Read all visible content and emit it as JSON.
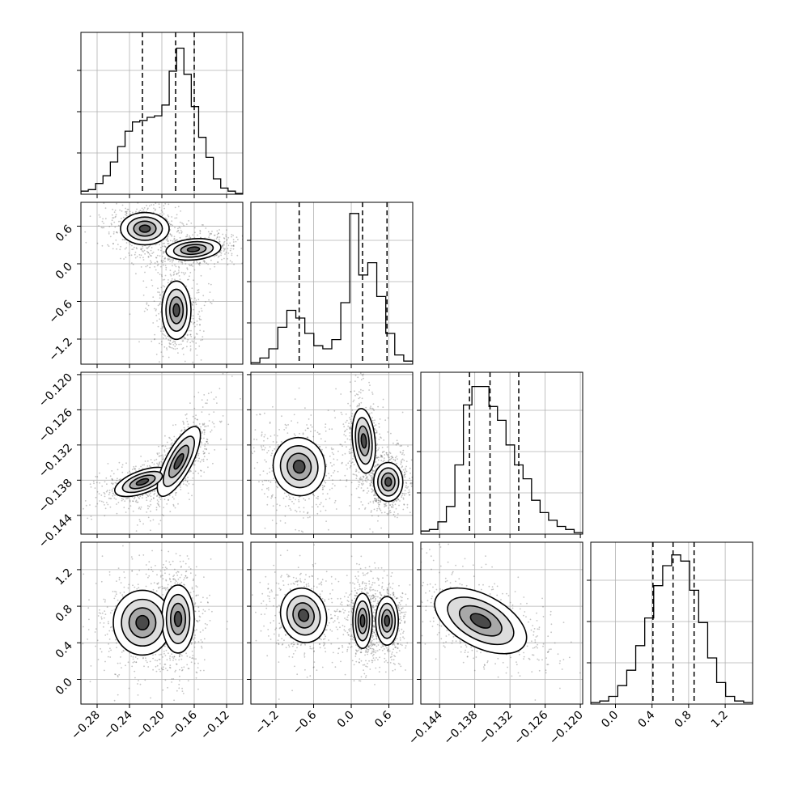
{
  "chart_data": {
    "type": "corner",
    "n_params": 4,
    "grid": true,
    "colors": {
      "line": "#000000",
      "grid": "#b0b0b0",
      "background": "#ffffff",
      "points": "#555555"
    },
    "params": [
      {
        "range": [
          -0.3,
          -0.1
        ],
        "ticks": [
          "−0.28",
          "−0.24",
          "−0.20",
          "−0.16",
          "−0.12"
        ],
        "tick_values": [
          -0.28,
          -0.24,
          -0.2,
          -0.16,
          -0.12
        ],
        "quantiles": [
          -0.224,
          -0.183,
          -0.16
        ]
      },
      {
        "range": [
          -1.6,
          0.98
        ],
        "ticks": [
          "−1.2",
          "−0.6",
          "0.0",
          "0.6"
        ],
        "tick_values": [
          -1.2,
          -0.6,
          0.0,
          0.6
        ],
        "quantiles": [
          -0.83,
          0.18,
          0.57
        ]
      },
      {
        "range": [
          -0.1472,
          -0.1196
        ],
        "ticks": [
          "−0.144",
          "−0.138",
          "−0.132",
          "−0.126",
          "−0.120"
        ],
        "tick_values": [
          -0.144,
          -0.138,
          -0.132,
          -0.126,
          -0.12
        ],
        "quantiles": [
          -0.1389,
          -0.1354,
          -0.1305
        ]
      },
      {
        "range": [
          -0.27,
          1.5
        ],
        "ticks": [
          "0.0",
          "0.4",
          "0.8",
          "1.2"
        ],
        "tick_values": [
          0.0,
          0.4,
          0.8,
          1.2
        ],
        "quantiles": [
          0.41,
          0.63,
          0.86
        ]
      }
    ],
    "histograms": [
      {
        "param": 0,
        "counts": [
          0.02,
          0.03,
          0.07,
          0.12,
          0.21,
          0.31,
          0.41,
          0.47,
          0.48,
          0.5,
          0.51,
          0.58,
          0.8,
          0.95,
          0.78,
          0.57,
          0.37,
          0.24,
          0.1,
          0.04,
          0.02,
          0.005
        ]
      },
      {
        "param": 1,
        "counts": [
          0.01,
          0.04,
          0.1,
          0.24,
          0.35,
          0.3,
          0.2,
          0.12,
          0.1,
          0.16,
          0.4,
          0.98,
          0.58,
          0.66,
          0.44,
          0.2,
          0.06,
          0.02
        ]
      },
      {
        "param": 2,
        "counts": [
          0.02,
          0.03,
          0.08,
          0.18,
          0.45,
          0.84,
          0.96,
          0.96,
          0.83,
          0.74,
          0.58,
          0.45,
          0.36,
          0.22,
          0.14,
          0.09,
          0.05,
          0.03,
          0.01
        ]
      },
      {
        "param": 3,
        "counts": [
          0.01,
          0.02,
          0.05,
          0.12,
          0.22,
          0.38,
          0.56,
          0.77,
          0.9,
          0.97,
          0.93,
          0.74,
          0.53,
          0.3,
          0.14,
          0.05,
          0.02,
          0.01
        ]
      }
    ],
    "pair_modes": [
      {
        "x_param": 0,
        "y_param": 1,
        "modes": [
          {
            "x": -0.221,
            "y": 0.56
          },
          {
            "x": -0.161,
            "y": 0.23
          },
          {
            "x": -0.182,
            "y": -0.74
          }
        ]
      },
      {
        "x_param": 0,
        "y_param": 2,
        "modes": [
          {
            "x": -0.224,
            "y": -0.1383
          },
          {
            "x": -0.179,
            "y": -0.1348
          }
        ]
      },
      {
        "x_param": 1,
        "y_param": 2,
        "modes": [
          {
            "x": -0.83,
            "y": -0.1357
          },
          {
            "x": 0.2,
            "y": -0.1313
          },
          {
            "x": 0.59,
            "y": -0.1383
          }
        ]
      },
      {
        "x_param": 0,
        "y_param": 3,
        "modes": [
          {
            "x": -0.224,
            "y": 0.62
          },
          {
            "x": -0.18,
            "y": 0.66
          }
        ]
      },
      {
        "x_param": 1,
        "y_param": 3,
        "modes": [
          {
            "x": -0.76,
            "y": 0.7
          },
          {
            "x": 0.18,
            "y": 0.64
          },
          {
            "x": 0.57,
            "y": 0.64
          }
        ]
      },
      {
        "x_param": 2,
        "y_param": 3,
        "modes": [
          {
            "x": -0.137,
            "y": 0.64
          }
        ]
      }
    ]
  }
}
